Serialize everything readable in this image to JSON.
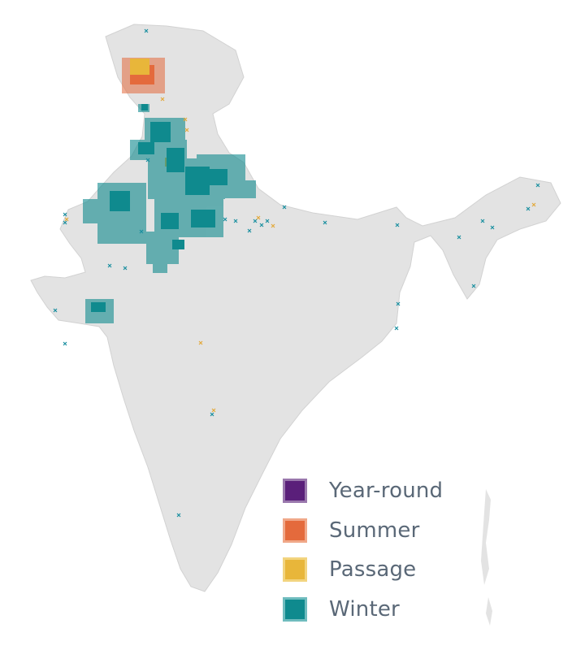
{
  "legend": {
    "items": [
      {
        "label": "Year-round",
        "fill": "#5a1f7a",
        "border": "#9a78ad"
      },
      {
        "label": "Summer",
        "fill": "#e46a3c",
        "border": "#f0a889"
      },
      {
        "label": "Passage",
        "fill": "#e8b63a",
        "border": "#f2d47f"
      },
      {
        "label": "Winter",
        "fill": "#0f8a8e",
        "border": "#6fbcbe"
      }
    ]
  },
  "colors": {
    "land": "#e3e3e3",
    "land_outline": "#d0d0d0",
    "winter": "#0f8a8e",
    "summer": "#e46a3c",
    "passage": "#e8b63a",
    "marker_winter": "#1a8fa0",
    "marker_passage": "#e3a93a"
  }
}
